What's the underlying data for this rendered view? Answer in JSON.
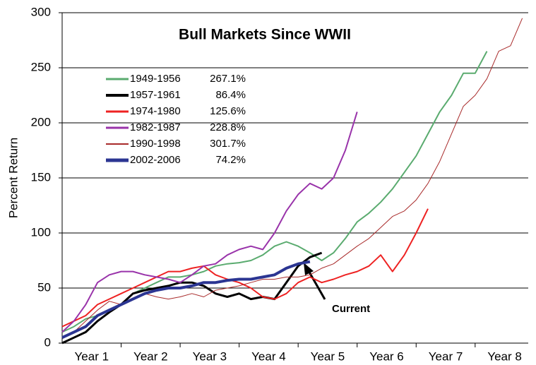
{
  "chart_data": {
    "type": "line",
    "title": "Bull Markets Since WWII",
    "ylabel": "Percent Return",
    "annotation": "Current",
    "x": [
      0,
      0.2,
      0.4,
      0.6,
      0.8,
      1.0,
      1.2,
      1.4,
      1.6,
      1.8,
      2.0,
      2.2,
      2.4,
      2.6,
      2.8,
      3.0,
      3.2,
      3.4,
      3.6,
      3.8,
      4.0,
      4.2,
      4.4,
      4.6,
      4.8,
      5.0,
      5.2,
      5.4,
      5.6,
      5.8,
      6.0,
      6.2,
      6.4,
      6.6,
      6.8,
      7.0,
      7.2,
      7.4,
      7.6,
      7.8
    ],
    "xlim": [
      0,
      7.9
    ],
    "xticks": [
      {
        "value": 0.5,
        "label": "Year 1"
      },
      {
        "value": 1.5,
        "label": "Year 2"
      },
      {
        "value": 2.5,
        "label": "Year 3"
      },
      {
        "value": 3.5,
        "label": "Year 4"
      },
      {
        "value": 4.5,
        "label": "Year 5"
      },
      {
        "value": 5.5,
        "label": "Year 6"
      },
      {
        "value": 6.5,
        "label": "Year 7"
      },
      {
        "value": 7.5,
        "label": "Year 8"
      }
    ],
    "ylim": [
      0,
      300
    ],
    "yticks": [
      0,
      50,
      100,
      150,
      200,
      250,
      300
    ],
    "grid": true,
    "legend": "upper left",
    "series": [
      {
        "name": "1949-1956",
        "total": "267.1%",
        "color": "#5aab6f",
        "line_width": 2,
        "values": [
          10,
          15,
          22,
          25,
          30,
          35,
          45,
          50,
          55,
          60,
          60,
          62,
          65,
          70,
          72,
          73,
          75,
          80,
          88,
          92,
          88,
          82,
          75,
          82,
          95,
          110,
          118,
          128,
          140,
          155,
          170,
          190,
          210,
          225,
          245,
          245,
          265,
          null,
          null,
          null
        ]
      },
      {
        "name": "1957-1961",
        "total": "86.4%",
        "color": "#000000",
        "line_width": 3,
        "values": [
          0,
          5,
          10,
          20,
          28,
          35,
          45,
          48,
          50,
          52,
          55,
          55,
          52,
          45,
          42,
          45,
          40,
          42,
          40,
          55,
          70,
          78,
          82,
          null,
          null,
          null,
          null,
          null,
          null,
          null,
          null,
          null,
          null,
          null,
          null,
          null,
          null,
          null,
          null,
          null
        ]
      },
      {
        "name": "1974-1980",
        "total": "125.6%",
        "color": "#ee2222",
        "line_width": 2,
        "values": [
          15,
          20,
          25,
          35,
          40,
          45,
          50,
          55,
          60,
          65,
          65,
          68,
          70,
          62,
          58,
          55,
          50,
          42,
          40,
          45,
          55,
          60,
          55,
          58,
          62,
          65,
          70,
          80,
          65,
          80,
          100,
          122,
          null,
          null,
          null,
          null,
          null,
          null,
          null,
          null
        ]
      },
      {
        "name": "1982-1987",
        "total": "228.8%",
        "color": "#9933aa",
        "line_width": 2,
        "values": [
          10,
          20,
          35,
          55,
          62,
          65,
          65,
          62,
          60,
          58,
          55,
          62,
          70,
          72,
          80,
          85,
          88,
          85,
          100,
          120,
          135,
          145,
          140,
          150,
          175,
          210,
          null,
          null,
          null,
          null,
          null,
          null,
          null,
          null,
          null,
          null,
          null,
          null,
          null,
          null
        ]
      },
      {
        "name": "1990-1998",
        "total": "301.7%",
        "color": "#a82a2a",
        "line_width": 1,
        "values": [
          5,
          10,
          20,
          30,
          38,
          35,
          40,
          45,
          42,
          40,
          42,
          45,
          42,
          48,
          50,
          52,
          55,
          58,
          58,
          60,
          60,
          62,
          68,
          72,
          80,
          88,
          95,
          105,
          115,
          120,
          130,
          145,
          165,
          190,
          215,
          225,
          240,
          265,
          270,
          295
        ]
      },
      {
        "name": "2002-2006",
        "total": "74.2%",
        "color": "#2b3592",
        "line_width": 4,
        "values": [
          5,
          10,
          15,
          25,
          30,
          35,
          40,
          45,
          48,
          50,
          50,
          52,
          55,
          55,
          57,
          58,
          58,
          60,
          62,
          68,
          72,
          74,
          null,
          null,
          null,
          null,
          null,
          null,
          null,
          null,
          null,
          null,
          null,
          null,
          null,
          null,
          null,
          null,
          null,
          null
        ]
      }
    ]
  }
}
